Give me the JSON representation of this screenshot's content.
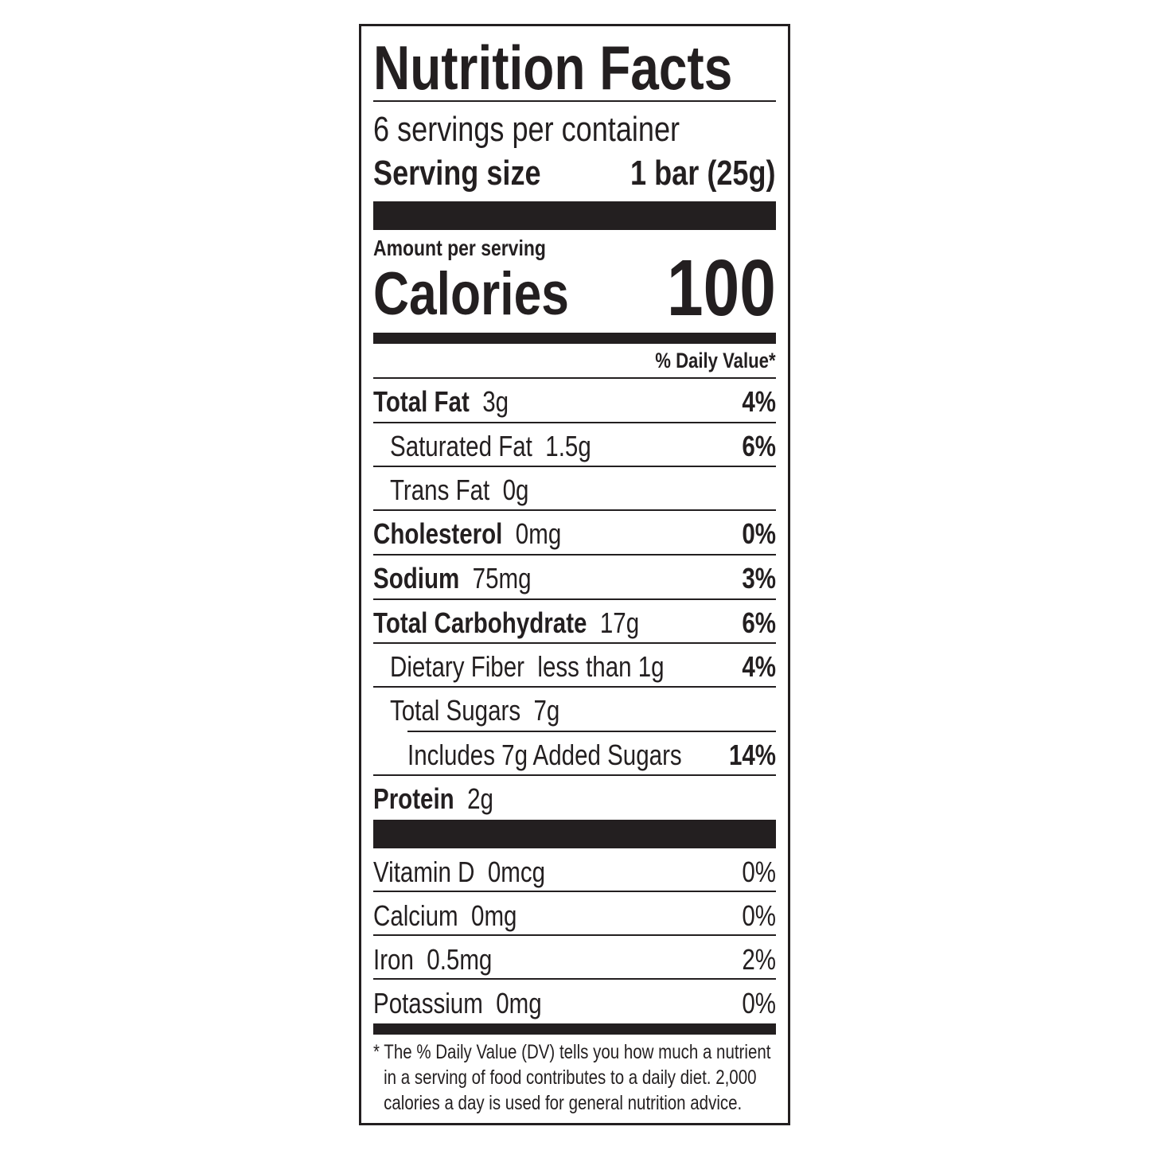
{
  "title": "Nutrition Facts",
  "servings_per_container": "6 servings per container",
  "serving_size_label": "Serving size",
  "serving_size_value": "1 bar (25g)",
  "amount_per_serving": "Amount per serving",
  "calories_label": "Calories",
  "calories_value": "100",
  "daily_value_header": "% Daily Value*",
  "nutrients": [
    {
      "name": "Total Fat",
      "amount": "3g",
      "dv": "4%"
    },
    {
      "name": "Saturated Fat",
      "amount": "1.5g",
      "dv": "6%"
    },
    {
      "name": "Trans Fat",
      "amount": "0g",
      "dv": ""
    },
    {
      "name": "Cholesterol",
      "amount": "0mg",
      "dv": "0%"
    },
    {
      "name": "Sodium",
      "amount": "75mg",
      "dv": "3%"
    },
    {
      "name": "Total Carbohydrate",
      "amount": "17g",
      "dv": "6%"
    },
    {
      "name": "Dietary Fiber",
      "amount": "less than 1g",
      "dv": "4%"
    },
    {
      "name": "Total Sugars",
      "amount": "7g",
      "dv": ""
    },
    {
      "name": "Includes 7g Added Sugars",
      "amount": "",
      "dv": "14%"
    },
    {
      "name": "Protein",
      "amount": "2g",
      "dv": ""
    }
  ],
  "vitamins": [
    {
      "name": "Vitamin D",
      "amount": "0mcg",
      "dv": "0%"
    },
    {
      "name": "Calcium",
      "amount": "0mg",
      "dv": "0%"
    },
    {
      "name": "Iron",
      "amount": "0.5mg",
      "dv": "2%"
    },
    {
      "name": "Potassium",
      "amount": "0mg",
      "dv": "0%"
    }
  ],
  "footnote": "* The % Daily Value (DV) tells you how much a nutrient in a serving of food contributes to a daily diet. 2,000 calories a day is used for general nutrition advice."
}
